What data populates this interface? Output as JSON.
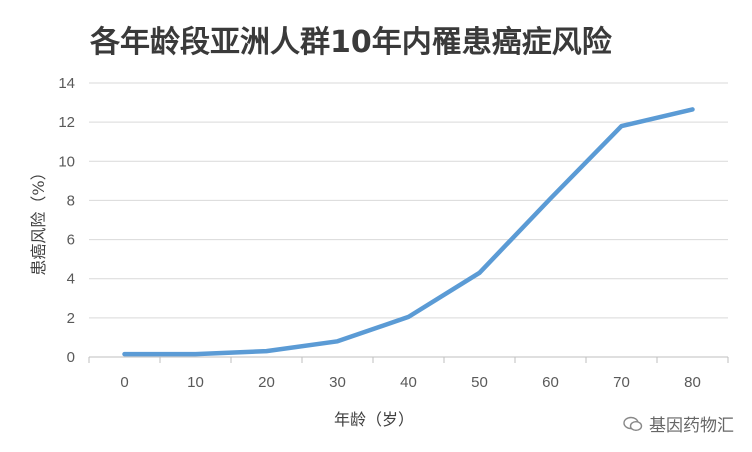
{
  "chart_data": {
    "type": "line",
    "title": "各年龄段亚洲人群10年内罹患癌症风险",
    "xlabel": "年龄（岁）",
    "ylabel": "患癌风险（%）",
    "x": [
      0,
      10,
      20,
      30,
      40,
      50,
      60,
      70,
      80
    ],
    "series": [
      {
        "values": [
          0.15,
          0.15,
          0.3,
          0.8,
          2.05,
          4.3,
          8.1,
          11.8,
          12.65
        ]
      }
    ],
    "ylim": [
      0,
      14
    ],
    "yticks": [
      0,
      2,
      4,
      6,
      8,
      10,
      12,
      14
    ],
    "grid": true,
    "line_color": "#5b9bd5"
  },
  "watermark": {
    "text": "基因药物汇",
    "icon": "wechat-bubble-icon"
  }
}
